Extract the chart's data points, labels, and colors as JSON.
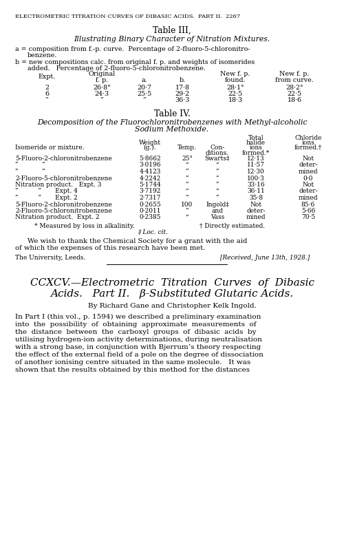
{
  "background_color": "#ffffff",
  "page_header": "ELECTROMETRIC TITRATION CURVES OF DIBASIC ACIDS.  PART II.  2267",
  "table3_title": "Table III,",
  "table3_subtitle": "Illustrating Binary Character of Nitration Mixtures.",
  "table4_title": "Table IV.",
  "table4_subtitle_1": "Decomposition of the Fluorochloronitrobenzenes with Methyl-alcoholic",
  "table4_subtitle_2": "Sodium Methoxide.",
  "table3_rows": [
    [
      "2",
      "26·8°",
      "20·7",
      "17·8",
      "28·1°",
      "28·2°"
    ],
    [
      "6",
      "24·3",
      "25·5",
      "29·2",
      "22·5",
      "22·5"
    ],
    [
      "”",
      "”",
      "”",
      "36·3",
      "18·3",
      "18·6"
    ]
  ],
  "table4_rows": [
    [
      "5-Fluoro-2-chloronitrobenzene",
      "5·8662",
      "25°",
      "Swarts‡",
      "12·13",
      "Not"
    ],
    [
      "”            ”",
      "3·0196",
      "”",
      "”",
      "11·57",
      "deter-"
    ],
    [
      "”            ”",
      "4·4123",
      "”",
      "”",
      "12·30",
      "mined"
    ],
    [
      "2-Fluoro-5-chloronitrobenzene",
      "4·2242",
      "”",
      "”",
      "100·3",
      "0·0"
    ],
    [
      "Nitration product.   Expt. 3",
      "5·1744",
      "”",
      "”",
      "33·16",
      "Not"
    ],
    [
      "”          ”       Expt. 4",
      "3·7192",
      "”",
      "”",
      "36·11",
      "deter-"
    ],
    [
      "”          ”       Expt. 2",
      "2·7317",
      "”",
      "”",
      "35·8",
      "mined"
    ],
    [
      "5-Fluoro-2-chloronitrobenzene",
      "0·2655",
      "100",
      "Ingold‡",
      "Not",
      "85·6"
    ],
    [
      "2-Fluoro-5-chloronitrobenzene",
      "0·2011",
      "”",
      "and",
      "deter-",
      "5·66"
    ],
    [
      "Nitration product.  Expt. 2",
      "0·2385",
      "”",
      "Vass",
      "mined",
      "70·5"
    ]
  ],
  "affiliation_left": "The University, Leeds.",
  "affiliation_right": "[Received, June 13th, 1928.]",
  "new_article_title_line1": "CCXCV.—Electrometric  Titration  Curves  of  Dibasic",
  "new_article_title_line2": "Acids.   Part II.   β-Substituted Glutaric Acids.",
  "new_article_authors": "By Richard Gane and Christopher Kelk Ingold.",
  "body_lines": [
    "In Part I (this vol., p. 1594) we described a preliminary examination",
    "into  the  possibility  of  obtaining  approximate  measurements  of",
    "the  distance  between  the  carboxyl  groups  of  dibasic  acids  by",
    "utilising hydrogen-ion activity determinations, during neutralisation",
    "with a strong base, in conjunction with Bjerrum’s theory respecting",
    "the effect of the external field of a pole on the degree of dissociation",
    "of another ionising centre situated in the same molecule.   It was",
    "shown that the results obtained by this method for the distances"
  ]
}
